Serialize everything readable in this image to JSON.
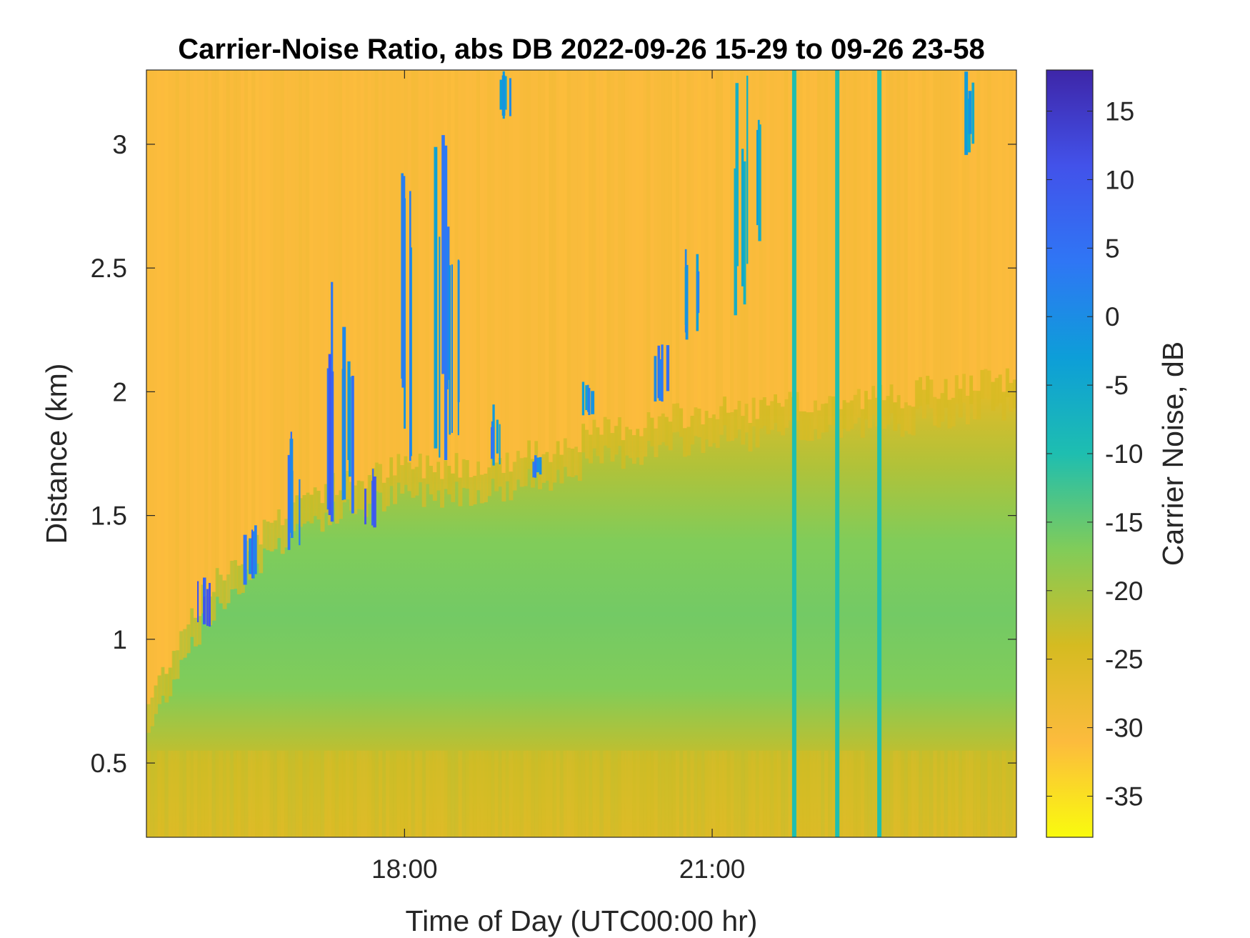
{
  "chart_data": {
    "type": "heatmap",
    "title": "Carrier-Noise Ratio, abs DB 2022-09-26 15-29 to 09-26 23-58",
    "xlabel": "Time of Day (UTC00:00 hr)",
    "ylabel": "Distance (km)",
    "colorbar_label": "Carrier Noise, dB",
    "x_range_hours": [
      15.483,
      23.967
    ],
    "x_ticks": [
      {
        "value": 18,
        "label": "18:00"
      },
      {
        "value": 21,
        "label": "21:00"
      }
    ],
    "y_range_km": [
      0.2,
      3.3
    ],
    "y_ticks": [
      {
        "value": 0.5,
        "label": "0.5"
      },
      {
        "value": 1,
        "label": "1"
      },
      {
        "value": 1.5,
        "label": "1.5"
      },
      {
        "value": 2,
        "label": "2"
      },
      {
        "value": 2.5,
        "label": "2.5"
      },
      {
        "value": 3,
        "label": "3"
      }
    ],
    "color_range_db": [
      -38,
      18
    ],
    "colorbar_ticks": [
      {
        "value": 15,
        "label": "15"
      },
      {
        "value": 10,
        "label": "10"
      },
      {
        "value": 5,
        "label": "5"
      },
      {
        "value": 0,
        "label": "0"
      },
      {
        "value": -5,
        "label": "-5"
      },
      {
        "value": -10,
        "label": "-10"
      },
      {
        "value": -15,
        "label": "-15"
      },
      {
        "value": -20,
        "label": "-20"
      },
      {
        "value": -25,
        "label": "-25"
      },
      {
        "value": -30,
        "label": "-30"
      },
      {
        "value": -35,
        "label": "-35"
      }
    ],
    "colormap": "parula-reversed",
    "colormap_stops": [
      {
        "value": -38,
        "color": "#f9fb0e"
      },
      {
        "value": -31,
        "color": "#fcbb3d"
      },
      {
        "value": -24,
        "color": "#d5bb21"
      },
      {
        "value": -17,
        "color": "#81cc59"
      },
      {
        "value": -10,
        "color": "#1ebeb0"
      },
      {
        "value": -3,
        "color": "#0d9ed8"
      },
      {
        "value": 4,
        "color": "#2f76f5"
      },
      {
        "value": 11,
        "color": "#4252ea"
      },
      {
        "value": 18,
        "color": "#3e26a8"
      }
    ],
    "background_profile": [
      {
        "distance_km": 0.2,
        "cnr_db": -26
      },
      {
        "distance_km": 0.5,
        "cnr_db": -23
      },
      {
        "distance_km": 0.8,
        "cnr_db": -17
      },
      {
        "distance_km": 1.1,
        "cnr_db": -16
      },
      {
        "distance_km": 1.4,
        "cnr_db": -17
      },
      {
        "distance_km": 1.7,
        "cnr_db": -21
      },
      {
        "distance_km": 2.0,
        "cnr_db": -26
      },
      {
        "distance_km": 2.4,
        "cnr_db": -29
      },
      {
        "distance_km": 3.3,
        "cnr_db": -30
      }
    ],
    "boundary_layer_top": [
      {
        "time_hr": 15.48,
        "distance_km": 0.72
      },
      {
        "time_hr": 15.9,
        "distance_km": 1.1
      },
      {
        "time_hr": 16.5,
        "distance_km": 1.4
      },
      {
        "time_hr": 17.0,
        "distance_km": 1.58
      },
      {
        "time_hr": 18.0,
        "distance_km": 1.7
      },
      {
        "time_hr": 19.0,
        "distance_km": 1.72
      },
      {
        "time_hr": 20.0,
        "distance_km": 1.85
      },
      {
        "time_hr": 21.0,
        "distance_km": 1.92
      },
      {
        "time_hr": 22.0,
        "distance_km": 1.95
      },
      {
        "time_hr": 23.0,
        "distance_km": 2.0
      },
      {
        "time_hr": 23.97,
        "distance_km": 2.05
      }
    ],
    "vertical_streaks": [
      {
        "time_hr": 21.8,
        "cnr_db": -10
      },
      {
        "time_hr": 22.22,
        "cnr_db": -10
      },
      {
        "time_hr": 22.63,
        "cnr_db": -10
      }
    ],
    "cloud_plumes": [
      {
        "time_hr": 16.05,
        "bottom_km": 1.05,
        "top_km": 1.25,
        "cnr_db": 12
      },
      {
        "time_hr": 16.48,
        "bottom_km": 1.2,
        "top_km": 1.5,
        "cnr_db": 8
      },
      {
        "time_hr": 16.95,
        "bottom_km": 1.3,
        "top_km": 1.85,
        "cnr_db": 6
      },
      {
        "time_hr": 17.25,
        "bottom_km": 1.45,
        "top_km": 2.45,
        "cnr_db": 10
      },
      {
        "time_hr": 17.45,
        "bottom_km": 1.5,
        "top_km": 2.3,
        "cnr_db": 6
      },
      {
        "time_hr": 17.65,
        "bottom_km": 1.45,
        "top_km": 1.7,
        "cnr_db": 12
      },
      {
        "time_hr": 18.05,
        "bottom_km": 1.7,
        "top_km": 2.9,
        "cnr_db": 4
      },
      {
        "time_hr": 18.35,
        "bottom_km": 1.65,
        "top_km": 3.1,
        "cnr_db": 4
      },
      {
        "time_hr": 18.5,
        "bottom_km": 1.75,
        "top_km": 2.7,
        "cnr_db": 6
      },
      {
        "time_hr": 18.88,
        "bottom_km": 1.7,
        "top_km": 1.95,
        "cnr_db": 4
      },
      {
        "time_hr": 19.0,
        "bottom_km": 3.1,
        "top_km": 3.3,
        "cnr_db": 2
      },
      {
        "time_hr": 19.3,
        "bottom_km": 1.65,
        "top_km": 1.75,
        "cnr_db": 6
      },
      {
        "time_hr": 19.8,
        "bottom_km": 1.9,
        "top_km": 2.05,
        "cnr_db": 4
      },
      {
        "time_hr": 20.5,
        "bottom_km": 1.95,
        "top_km": 2.25,
        "cnr_db": 8
      },
      {
        "time_hr": 20.8,
        "bottom_km": 2.2,
        "top_km": 2.6,
        "cnr_db": 2
      },
      {
        "time_hr": 21.3,
        "bottom_km": 2.3,
        "top_km": 3.3,
        "cnr_db": -2
      },
      {
        "time_hr": 21.5,
        "bottom_km": 2.6,
        "top_km": 3.1,
        "cnr_db": 2
      },
      {
        "time_hr": 23.5,
        "bottom_km": 2.95,
        "top_km": 3.3,
        "cnr_db": 2
      }
    ]
  }
}
